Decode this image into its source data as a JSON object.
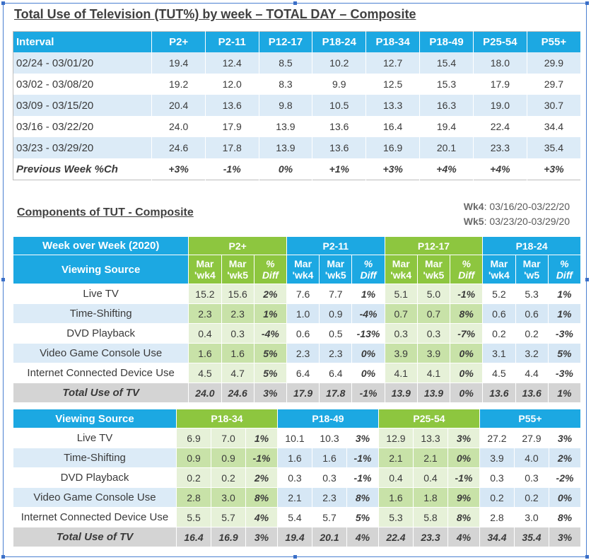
{
  "table1": {
    "title": "Total Use of Television (TUT%) by week – TOTAL DAY – Composite",
    "headers": [
      "Interval",
      "P2+",
      "P2-11",
      "P12-17",
      "P18-24",
      "P18-34",
      "P18-49",
      "P25-54",
      "P55+"
    ],
    "rows": [
      [
        "02/24 - 03/01/20",
        "19.4",
        "12.4",
        "8.5",
        "10.2",
        "12.7",
        "15.4",
        "18.0",
        "29.9"
      ],
      [
        "03/02 - 03/08/20",
        "19.2",
        "12.0",
        "8.3",
        "9.9",
        "12.5",
        "15.3",
        "17.9",
        "29.7"
      ],
      [
        "03/09 - 03/15/20",
        "20.4",
        "13.6",
        "9.8",
        "10.5",
        "13.3",
        "16.3",
        "19.0",
        "30.7"
      ],
      [
        "03/16 - 03/22/20",
        "24.0",
        "17.9",
        "13.9",
        "13.6",
        "16.4",
        "19.4",
        "22.4",
        "34.4"
      ],
      [
        "03/23 - 03/29/20",
        "24.6",
        "17.8",
        "13.9",
        "13.6",
        "16.9",
        "20.1",
        "23.3",
        "35.4"
      ]
    ],
    "pct_row": [
      "Previous Week %Ch",
      "+3%",
      "-1%",
      "0%",
      "+1%",
      "+3%",
      "+4%",
      "+4%",
      "+3%"
    ]
  },
  "notes": {
    "wk4_label": "Wk4",
    "wk4_value": ": 03/16/20-03/22/20",
    "wk5_label": "Wk5",
    "wk5_value": ": 03/23/20-03/29/20"
  },
  "table2_title": "Components of TUT - Composite",
  "comp1": {
    "top_left": "Week over Week (2020)",
    "source_label": "Viewing Source",
    "groups": [
      "P2+",
      "P2-11",
      "P12-17",
      "P18-24"
    ],
    "subheaders": [
      [
        "Mar",
        "'wk4",
        "Mar",
        "'wk5",
        "%",
        "Diff"
      ],
      [
        "Mar",
        "'wk4",
        "Mar",
        "'wk5",
        "%",
        "Diff"
      ],
      [
        "Mar",
        "'wk4",
        "Mar",
        "'wk5",
        "%",
        "Diff"
      ],
      [
        "Mar",
        "'wk4",
        "Mar",
        "'w5",
        "%",
        "Diff"
      ]
    ],
    "rows": [
      {
        "source": "Live TV",
        "vals": [
          "15.2",
          "15.6",
          "2%",
          "7.6",
          "7.7",
          "1%",
          "5.1",
          "5.0",
          "-1%",
          "5.2",
          "5.3",
          "1%"
        ]
      },
      {
        "source": "Time-Shifting",
        "vals": [
          "2.3",
          "2.3",
          "1%",
          "1.0",
          "0.9",
          "-4%",
          "0.7",
          "0.7",
          "8%",
          "0.6",
          "0.6",
          "1%"
        ]
      },
      {
        "source": "DVD Playback",
        "vals": [
          "0.4",
          "0.3",
          "-4%",
          "0.6",
          "0.5",
          "-13%",
          "0.3",
          "0.3",
          "-7%",
          "0.2",
          "0.2",
          "-3%"
        ]
      },
      {
        "source": "Video Game Console Use",
        "vals": [
          "1.6",
          "1.6",
          "5%",
          "2.3",
          "2.3",
          "0%",
          "3.9",
          "3.9",
          "0%",
          "3.1",
          "3.2",
          "5%"
        ]
      },
      {
        "source": "Internet Connected Device Use",
        "vals": [
          "4.5",
          "4.7",
          "5%",
          "6.4",
          "6.4",
          "0%",
          "4.1",
          "4.1",
          "0%",
          "4.5",
          "4.4",
          "-3%"
        ]
      }
    ],
    "total": {
      "source": "Total Use of TV",
      "vals": [
        "24.0",
        "24.6",
        "3%",
        "17.9",
        "17.8",
        "-1%",
        "13.9",
        "13.9",
        "0%",
        "13.6",
        "13.6",
        "1%"
      ]
    }
  },
  "comp2": {
    "source_label": "Viewing Source",
    "groups": [
      "P18-34",
      "P18-49",
      "P25-54",
      "P55+"
    ],
    "rows": [
      {
        "source": "Live TV",
        "vals": [
          "6.9",
          "7.0",
          "1%",
          "10.1",
          "10.3",
          "3%",
          "12.9",
          "13.3",
          "3%",
          "27.2",
          "27.9",
          "3%"
        ]
      },
      {
        "source": "Time-Shifting",
        "vals": [
          "0.9",
          "0.9",
          "-1%",
          "1.6",
          "1.6",
          "-1%",
          "2.1",
          "2.1",
          "0%",
          "3.9",
          "4.0",
          "2%"
        ]
      },
      {
        "source": "DVD Playback",
        "vals": [
          "0.2",
          "0.2",
          "2%",
          "0.3",
          "0.3",
          "-1%",
          "0.4",
          "0.4",
          "-1%",
          "0.3",
          "0.3",
          "-2%"
        ]
      },
      {
        "source": "Video Game Console Use",
        "vals": [
          "2.8",
          "3.0",
          "8%",
          "2.1",
          "2.3",
          "8%",
          "1.6",
          "1.8",
          "9%",
          "0.2",
          "0.2",
          "0%"
        ]
      },
      {
        "source": "Internet Connected Device Use",
        "vals": [
          "5.5",
          "5.7",
          "4%",
          "5.4",
          "5.7",
          "5%",
          "5.3",
          "5.8",
          "8%",
          "2.8",
          "3.0",
          "8%"
        ]
      }
    ],
    "total": {
      "source": "Total Use of TV",
      "vals": [
        "16.4",
        "16.9",
        "3%",
        "19.4",
        "20.1",
        "4%",
        "22.4",
        "23.3",
        "4%",
        "34.4",
        "35.4",
        "3%"
      ]
    }
  }
}
